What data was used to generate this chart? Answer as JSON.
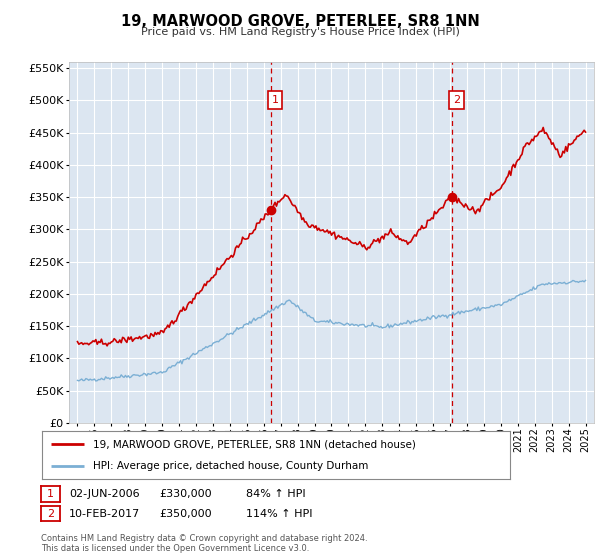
{
  "title": "19, MARWOOD GROVE, PETERLEE, SR8 1NN",
  "subtitle": "Price paid vs. HM Land Registry's House Price Index (HPI)",
  "legend_line1": "19, MARWOOD GROVE, PETERLEE, SR8 1NN (detached house)",
  "legend_line2": "HPI: Average price, detached house, County Durham",
  "annotation1_date": "02-JUN-2006",
  "annotation1_price": "£330,000",
  "annotation1_hpi": "84% ↑ HPI",
  "annotation1_year": 2006.42,
  "annotation1_value": 330000,
  "annotation2_date": "10-FEB-2017",
  "annotation2_price": "£350,000",
  "annotation2_hpi": "114% ↑ HPI",
  "annotation2_year": 2017.12,
  "annotation2_value": 350000,
  "footer_line1": "Contains HM Land Registry data © Crown copyright and database right 2024.",
  "footer_line2": "This data is licensed under the Open Government Licence v3.0.",
  "red_color": "#cc0000",
  "blue_color": "#7bafd4",
  "plot_bg_color": "#dce6f1",
  "grid_color": "#ffffff",
  "box_color": "#cc0000",
  "ylim": [
    0,
    560000
  ],
  "yticks": [
    0,
    50000,
    100000,
    150000,
    200000,
    250000,
    300000,
    350000,
    400000,
    450000,
    500000,
    550000
  ],
  "xlim_start": 1994.5,
  "xlim_end": 2025.5
}
